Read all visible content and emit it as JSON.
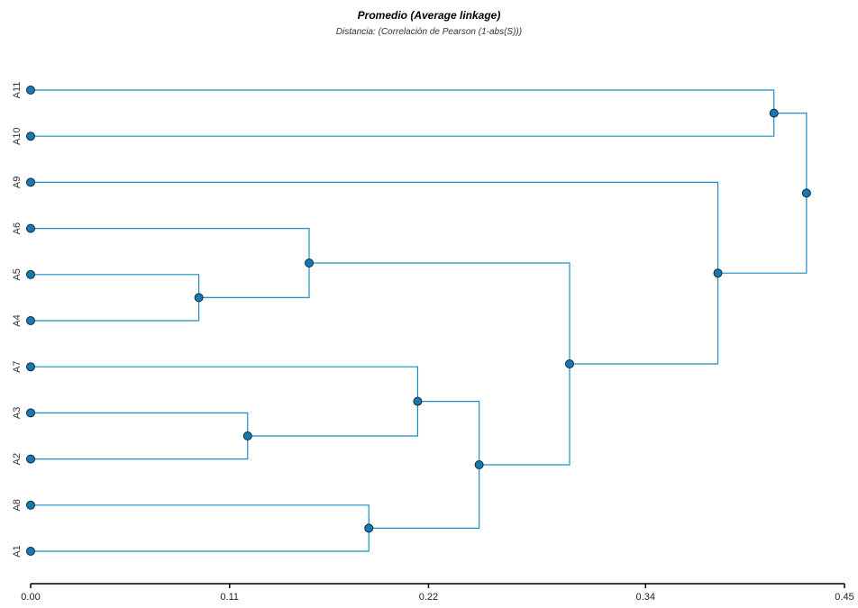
{
  "chart_data": {
    "type": "dendrogram",
    "title": "Promedio (Average linkage)",
    "subtitle": "Distancia: (Correlación de Pearson (1-abs(S)))",
    "xlim": [
      0,
      0.45
    ],
    "x_ticks": [
      0.0,
      0.11,
      0.22,
      0.34,
      0.45
    ],
    "x_tick_labels": [
      "0.00",
      "0.11",
      "0.22",
      "0.34",
      "0.45"
    ],
    "leaves": [
      "A11",
      "A10",
      "A9",
      "A6",
      "A5",
      "A4",
      "A7",
      "A3",
      "A2",
      "A8",
      "A1"
    ],
    "merges": [
      {
        "id": "m1",
        "children": [
          "A5",
          "A4"
        ],
        "height": 0.093
      },
      {
        "id": "m2",
        "children": [
          "A3",
          "A2"
        ],
        "height": 0.12
      },
      {
        "id": "m3",
        "children": [
          "A6",
          "m1"
        ],
        "height": 0.154
      },
      {
        "id": "m4",
        "children": [
          "A8",
          "A1"
        ],
        "height": 0.187
      },
      {
        "id": "m5",
        "children": [
          "A7",
          "m2"
        ],
        "height": 0.214
      },
      {
        "id": "m6",
        "children": [
          "m5",
          "m4"
        ],
        "height": 0.248
      },
      {
        "id": "m7",
        "children": [
          "m3",
          "m6"
        ],
        "height": 0.298
      },
      {
        "id": "m8",
        "children": [
          "A9",
          "m7"
        ],
        "height": 0.38
      },
      {
        "id": "m9",
        "children": [
          "A11",
          "A10"
        ],
        "height": 0.411
      },
      {
        "id": "m10",
        "children": [
          "m9",
          "m8"
        ],
        "height": 0.429
      }
    ],
    "colors": {
      "link": "#1a8fc4",
      "node": "#1a78b0",
      "node_stroke": "#0d2a3a"
    }
  }
}
